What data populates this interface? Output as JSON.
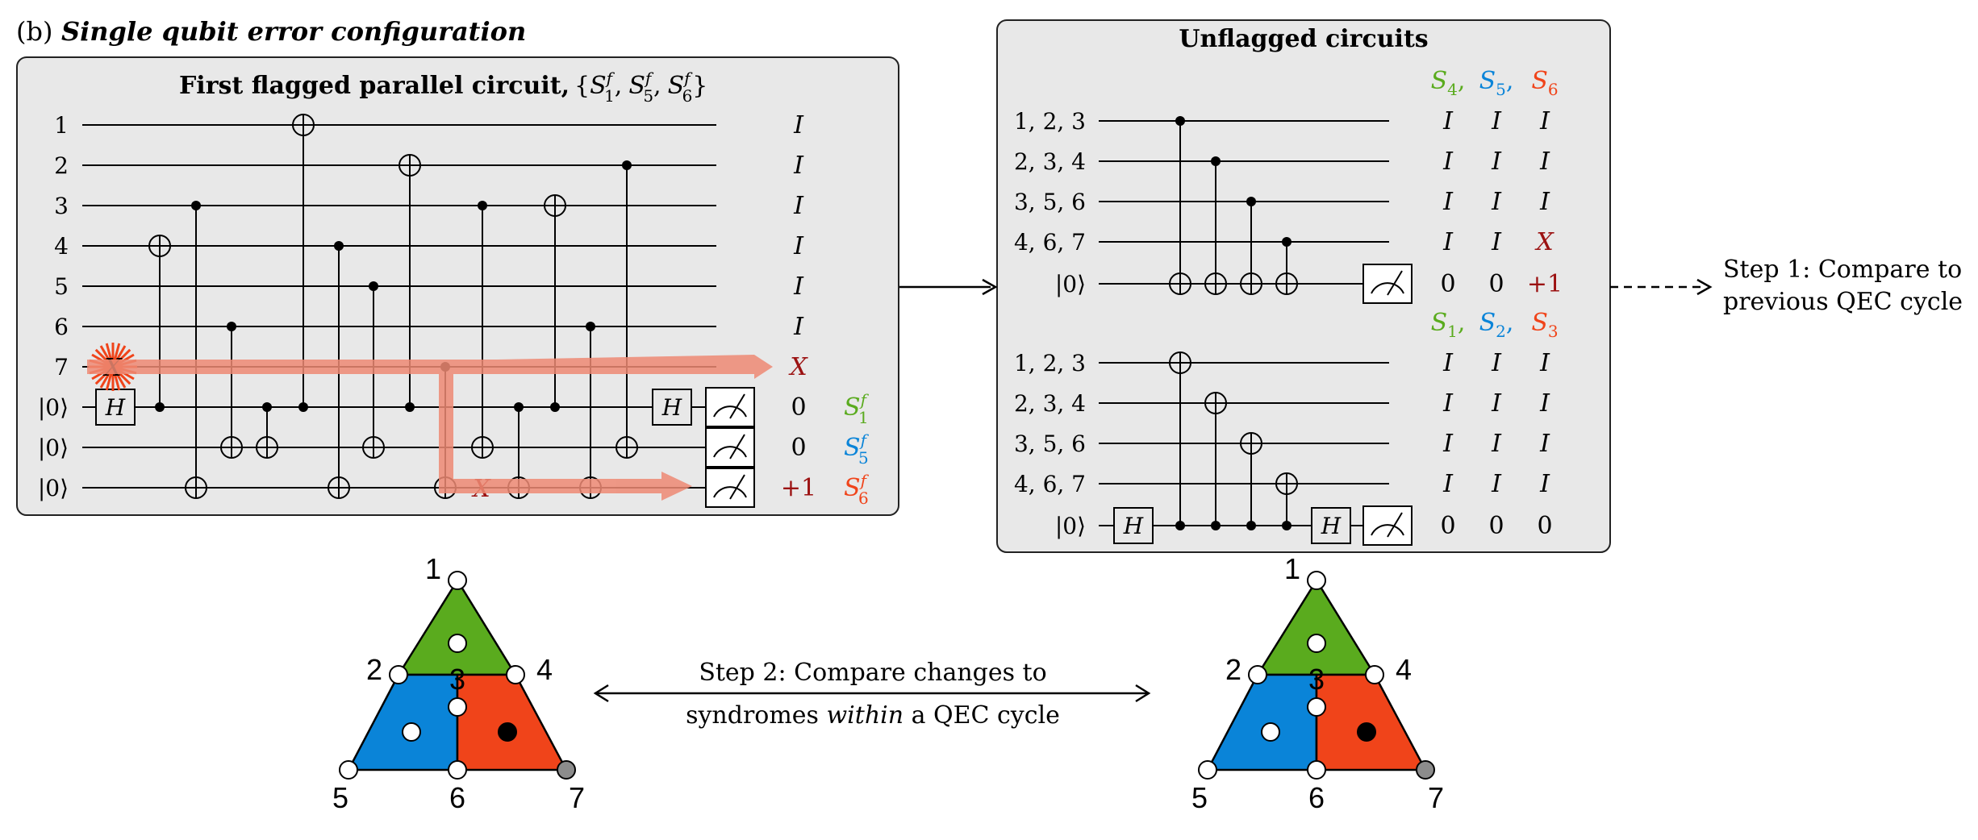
{
  "figure_label": "(b)",
  "figure_title": "Single qubit error configuration",
  "flagged_panel": {
    "title_bold": "First flagged parallel circuit,",
    "title_set": "{S₁ᶠ, S₅ᶠ, S₆ᶠ}",
    "title_set_parts": {
      "open": "{",
      "s": "S",
      "f": "f",
      "sep": ",",
      "close": "}",
      "subs": [
        "1",
        "5",
        "6"
      ]
    },
    "wire_labels": [
      "1",
      "2",
      "3",
      "4",
      "5",
      "6",
      "7",
      "|0⟩",
      "|0⟩",
      "|0⟩"
    ],
    "hadamard": "H",
    "injected_error": "X",
    "propagated_error": "X",
    "outputs": [
      "I",
      "I",
      "I",
      "I",
      "I",
      "I",
      "X",
      "0",
      "0",
      "+1"
    ],
    "flag_labels": [
      "S₁ᶠ",
      "S₅ᶠ",
      "S₆ᶠ"
    ],
    "flag_label_parts": {
      "s": "S",
      "f": "f",
      "subs": [
        "1",
        "5",
        "6"
      ]
    }
  },
  "unflagged_panel": {
    "title": "Unflagged circuits",
    "top": {
      "header": [
        "S₄,",
        "S₅,",
        "S₆"
      ],
      "header_parts": {
        "s": "S",
        "subs": [
          "4",
          "5",
          "6"
        ],
        "seps": [
          ",",
          ",",
          ""
        ]
      },
      "wire_labels": [
        "1, 2, 3",
        "2, 3, 4",
        "3, 5, 6",
        "4, 6, 7",
        "|0⟩"
      ],
      "rows": [
        [
          "I",
          "I",
          "I"
        ],
        [
          "I",
          "I",
          "I"
        ],
        [
          "I",
          "I",
          "I"
        ],
        [
          "I",
          "I",
          "X"
        ],
        [
          "0",
          "0",
          "+1"
        ]
      ]
    },
    "bottom": {
      "header": [
        "S₁,",
        "S₂,",
        "S₃"
      ],
      "header_parts": {
        "s": "S",
        "subs": [
          "1",
          "2",
          "3"
        ],
        "seps": [
          ",",
          ",",
          ""
        ]
      },
      "wire_labels": [
        "1, 2, 3",
        "2, 3, 4",
        "3, 5, 6",
        "4, 6, 7",
        "|0⟩"
      ],
      "hadamard": "H",
      "rows": [
        [
          "I",
          "I",
          "I"
        ],
        [
          "I",
          "I",
          "I"
        ],
        [
          "I",
          "I",
          "I"
        ],
        [
          "I",
          "I",
          "I"
        ],
        [
          "0",
          "0",
          "0"
        ]
      ]
    }
  },
  "step1": [
    "Step 1: Compare to",
    "previous QEC cycle"
  ],
  "step2": {
    "line1": "Step 2: Compare changes to",
    "line2_pre": "syndromes ",
    "line2_em": "within",
    "line2_post": " a QEC cycle"
  },
  "triangle_labels": [
    "1",
    "2",
    "3",
    "4",
    "5",
    "6",
    "7"
  ],
  "colors": {
    "green": "#5aab1e",
    "blue": "#0a84d8",
    "red": "#f0441a",
    "darkred": "#9b1111",
    "panel_bg": "#e8e8e8",
    "arrow": "#ee8a74",
    "error": "#f0441a",
    "gray_qubit": "#8c8c8c"
  }
}
